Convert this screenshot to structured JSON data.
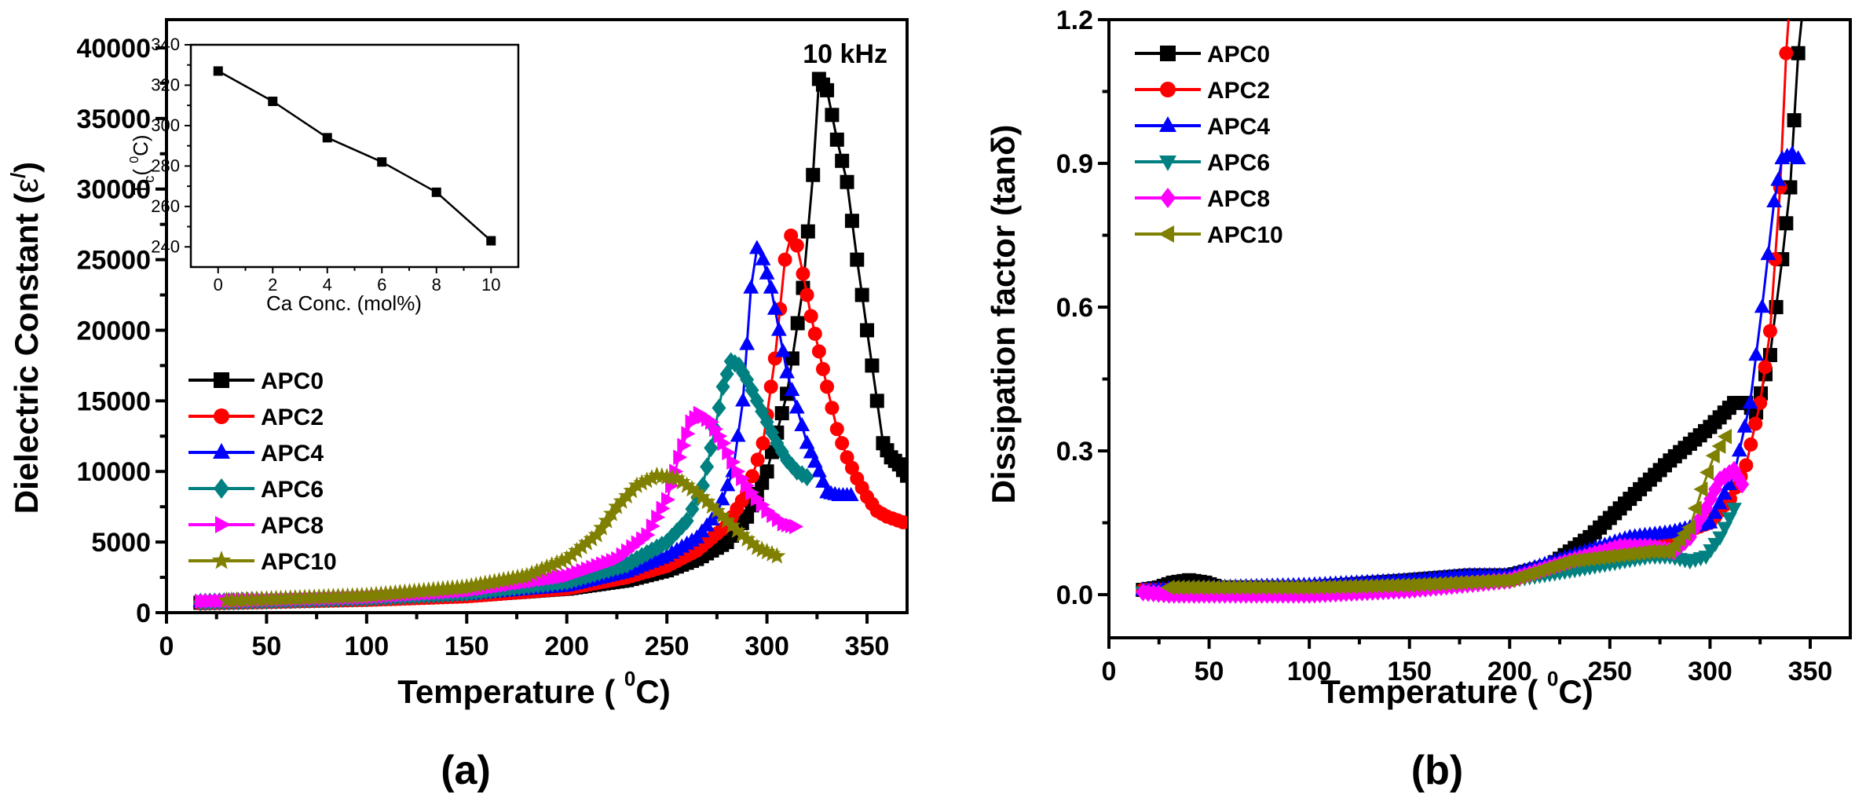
{
  "chart_data": [
    {
      "id": "panel-a",
      "type": "line",
      "caption": "(a)",
      "annotation": "10 kHz",
      "xlabel": "Temperature ( °C)",
      "xlabel_main": "Temperature ( ",
      "xlabel_sup": "0",
      "xlabel_end": "C)",
      "ylabel": "Dielectric Constant (ε′)",
      "ylabel_main": "Dielectric Constant (",
      "ylabel_sym": "ε",
      "ylabel_sup": "/",
      "ylabel_end": ")",
      "xlim": [
        0,
        370
      ],
      "ylim": [
        0,
        42000
      ],
      "xticks": [
        0,
        50,
        100,
        150,
        200,
        250,
        300,
        350
      ],
      "yticks": [
        0,
        5000,
        10000,
        15000,
        20000,
        25000,
        30000,
        35000,
        40000
      ],
      "legend": "center-left",
      "series": [
        {
          "name": "APC0",
          "color": "#000000",
          "marker": "square",
          "points": [
            [
              17,
              700
            ],
            [
              50,
              800
            ],
            [
              100,
              950
            ],
            [
              150,
              1200
            ],
            [
              200,
              1700
            ],
            [
              230,
              2300
            ],
            [
              250,
              3000
            ],
            [
              265,
              3800
            ],
            [
              280,
              5000
            ],
            [
              290,
              6800
            ],
            [
              300,
              10000
            ],
            [
              310,
              15500
            ],
            [
              318,
              23000
            ],
            [
              323,
              31000
            ],
            [
              326,
              37800
            ],
            [
              330,
              37000
            ],
            [
              335,
              33500
            ],
            [
              340,
              30500
            ],
            [
              345,
              25000
            ],
            [
              350,
              20000
            ],
            [
              355,
              15000
            ],
            [
              358,
              12000
            ],
            [
              362,
              11000
            ],
            [
              366,
              10500
            ],
            [
              370,
              9700
            ]
          ]
        },
        {
          "name": "APC2",
          "color": "#ff0000",
          "marker": "circle",
          "points": [
            [
              17,
              650
            ],
            [
              50,
              750
            ],
            [
              100,
              900
            ],
            [
              150,
              1150
            ],
            [
              200,
              1700
            ],
            [
              230,
              2500
            ],
            [
              250,
              3300
            ],
            [
              265,
              4400
            ],
            [
              280,
              6200
            ],
            [
              290,
              8500
            ],
            [
              298,
              12000
            ],
            [
              304,
              18000
            ],
            [
              309,
              25000
            ],
            [
              312,
              26700
            ],
            [
              315,
              26000
            ],
            [
              318,
              24000
            ],
            [
              322,
              21000
            ],
            [
              326,
              18500
            ],
            [
              330,
              16000
            ],
            [
              335,
              13000
            ],
            [
              340,
              11000
            ],
            [
              345,
              9500
            ],
            [
              350,
              8200
            ],
            [
              355,
              7200
            ],
            [
              360,
              6800
            ],
            [
              368,
              6400
            ]
          ]
        },
        {
          "name": "APC4",
          "color": "#0000ff",
          "marker": "triangle-up",
          "points": [
            [
              17,
              800
            ],
            [
              50,
              900
            ],
            [
              100,
              1050
            ],
            [
              150,
              1300
            ],
            [
              200,
              1900
            ],
            [
              230,
              2900
            ],
            [
              250,
              4000
            ],
            [
              265,
              5300
            ],
            [
              275,
              7000
            ],
            [
              283,
              10000
            ],
            [
              288,
              15000
            ],
            [
              292,
              23000
            ],
            [
              295,
              25800
            ],
            [
              298,
              25000
            ],
            [
              302,
              23000
            ],
            [
              306,
              20000
            ],
            [
              310,
              17000
            ],
            [
              315,
              14500
            ],
            [
              320,
              12000
            ],
            [
              326,
              10000
            ],
            [
              330,
              8500
            ],
            [
              336,
              8300
            ],
            [
              342,
              8300
            ]
          ]
        },
        {
          "name": "APC6",
          "color": "#008080",
          "marker": "diamond",
          "points": [
            [
              17,
              750
            ],
            [
              50,
              850
            ],
            [
              100,
              1050
            ],
            [
              150,
              1400
            ],
            [
              200,
              2200
            ],
            [
              230,
              3400
            ],
            [
              250,
              5000
            ],
            [
              260,
              6500
            ],
            [
              268,
              9000
            ],
            [
              274,
              13000
            ],
            [
              278,
              16000
            ],
            [
              282,
              17800
            ],
            [
              286,
              17500
            ],
            [
              290,
              16500
            ],
            [
              295,
              15000
            ],
            [
              300,
              13500
            ],
            [
              305,
              12000
            ],
            [
              310,
              10800
            ],
            [
              315,
              10000
            ],
            [
              320,
              9600
            ]
          ]
        },
        {
          "name": "APC8",
          "color": "#ff00ff",
          "marker": "triangle-right",
          "points": [
            [
              17,
              800
            ],
            [
              50,
              900
            ],
            [
              100,
              1100
            ],
            [
              150,
              1550
            ],
            [
              200,
              2600
            ],
            [
              225,
              3800
            ],
            [
              240,
              5500
            ],
            [
              250,
              8000
            ],
            [
              256,
              11000
            ],
            [
              262,
              13500
            ],
            [
              266,
              14100
            ],
            [
              272,
              13500
            ],
            [
              278,
              12000
            ],
            [
              285,
              10000
            ],
            [
              292,
              8500
            ],
            [
              300,
              7200
            ],
            [
              308,
              6300
            ],
            [
              314,
              6100
            ]
          ]
        },
        {
          "name": "APC10",
          "color": "#808000",
          "marker": "star",
          "points": [
            [
              30,
              850
            ],
            [
              50,
              950
            ],
            [
              100,
              1200
            ],
            [
              150,
              1800
            ],
            [
              180,
              2600
            ],
            [
              200,
              3800
            ],
            [
              215,
              5500
            ],
            [
              225,
              7500
            ],
            [
              235,
              9000
            ],
            [
              245,
              9700
            ],
            [
              255,
              9500
            ],
            [
              265,
              8500
            ],
            [
              275,
              7200
            ],
            [
              285,
              5800
            ],
            [
              295,
              4600
            ],
            [
              305,
              4000
            ]
          ]
        }
      ]
    },
    {
      "id": "panel-a-inset",
      "type": "line",
      "xlabel": "Ca Conc. (mol%)",
      "ylabel": "Tc (°C)",
      "ylabel_main": "T",
      "ylabel_sub": "c",
      "ylabel_open": "( ",
      "ylabel_sup": "0",
      "ylabel_end": "C)",
      "xlim": [
        -1,
        11
      ],
      "ylim": [
        230,
        340
      ],
      "xticks": [
        0,
        2,
        4,
        6,
        8,
        10
      ],
      "yticks": [
        240,
        260,
        280,
        300,
        320,
        340
      ],
      "series": [
        {
          "name": "Tc",
          "color": "#000000",
          "marker": "square",
          "x": [
            0,
            2,
            4,
            6,
            8,
            10
          ],
          "y": [
            327,
            312,
            294,
            282,
            267,
            243
          ]
        }
      ]
    },
    {
      "id": "panel-b",
      "type": "line",
      "caption": "(b)",
      "xlabel": "Temperature ( °C)",
      "xlabel_main": "Temperature ( ",
      "xlabel_sup": "0",
      "xlabel_end": "C)",
      "ylabel": "Dissipation factor (tanδ)",
      "xlim": [
        0,
        370
      ],
      "ylim": [
        -0.09,
        1.2
      ],
      "xticks": [
        0,
        50,
        100,
        150,
        200,
        250,
        300,
        350
      ],
      "yticks": [
        0.0,
        0.3,
        0.6,
        0.9,
        1.2
      ],
      "ytick_labels": [
        "0.0",
        "0.3",
        "0.6",
        "0.9",
        "1.2"
      ],
      "legend": "top-left",
      "series": [
        {
          "name": "APC0",
          "color": "#000000",
          "marker": "square",
          "points": [
            [
              17,
              0.01
            ],
            [
              25,
              0.015
            ],
            [
              32,
              0.025
            ],
            [
              40,
              0.03
            ],
            [
              48,
              0.025
            ],
            [
              55,
              0.015
            ],
            [
              100,
              0.015
            ],
            [
              150,
              0.03
            ],
            [
              180,
              0.04
            ],
            [
              200,
              0.04
            ],
            [
              220,
              0.06
            ],
            [
              240,
              0.12
            ],
            [
              260,
              0.2
            ],
            [
              280,
              0.28
            ],
            [
              300,
              0.35
            ],
            [
              312,
              0.4
            ],
            [
              318,
              0.4
            ],
            [
              323,
              0.38
            ],
            [
              330,
              0.5
            ],
            [
              336,
              0.7
            ],
            [
              340,
              0.85
            ],
            [
              344,
              1.13
            ],
            [
              347,
              1.25
            ]
          ]
        },
        {
          "name": "APC2",
          "color": "#ff0000",
          "marker": "circle",
          "points": [
            [
              17,
              0.01
            ],
            [
              50,
              0.01
            ],
            [
              100,
              0.01
            ],
            [
              150,
              0.02
            ],
            [
              200,
              0.03
            ],
            [
              230,
              0.07
            ],
            [
              260,
              0.1
            ],
            [
              280,
              0.12
            ],
            [
              300,
              0.15
            ],
            [
              310,
              0.2
            ],
            [
              318,
              0.27
            ],
            [
              325,
              0.4
            ],
            [
              330,
              0.55
            ],
            [
              335,
              0.85
            ],
            [
              338,
              1.13
            ],
            [
              340,
              1.25
            ]
          ]
        },
        {
          "name": "APC4",
          "color": "#0000ff",
          "marker": "triangle-up",
          "points": [
            [
              17,
              0.01
            ],
            [
              50,
              0.015
            ],
            [
              100,
              0.02
            ],
            [
              150,
              0.03
            ],
            [
              180,
              0.04
            ],
            [
              200,
              0.04
            ],
            [
              230,
              0.08
            ],
            [
              260,
              0.12
            ],
            [
              280,
              0.13
            ],
            [
              300,
              0.15
            ],
            [
              312,
              0.25
            ],
            [
              320,
              0.4
            ],
            [
              326,
              0.6
            ],
            [
              332,
              0.82
            ],
            [
              336,
              0.91
            ],
            [
              341,
              0.92
            ],
            [
              344,
              0.91
            ]
          ]
        },
        {
          "name": "APC6",
          "color": "#008080",
          "marker": "triangle-down",
          "points": [
            [
              17,
              0.005
            ],
            [
              50,
              0.005
            ],
            [
              100,
              0.005
            ],
            [
              150,
              0.015
            ],
            [
              200,
              0.03
            ],
            [
              230,
              0.05
            ],
            [
              250,
              0.065
            ],
            [
              270,
              0.08
            ],
            [
              280,
              0.08
            ],
            [
              290,
              0.07
            ],
            [
              298,
              0.08
            ],
            [
              305,
              0.12
            ],
            [
              312,
              0.18
            ]
          ]
        },
        {
          "name": "APC8",
          "color": "#ff00ff",
          "marker": "diamond",
          "points": [
            [
              17,
              0.005
            ],
            [
              30,
              0.0
            ],
            [
              50,
              0.0
            ],
            [
              100,
              0.0
            ],
            [
              150,
              0.01
            ],
            [
              200,
              0.03
            ],
            [
              230,
              0.07
            ],
            [
              255,
              0.1
            ],
            [
              270,
              0.1
            ],
            [
              282,
              0.09
            ],
            [
              290,
              0.12
            ],
            [
              298,
              0.18
            ],
            [
              305,
              0.24
            ],
            [
              312,
              0.26
            ],
            [
              316,
              0.23
            ]
          ]
        },
        {
          "name": "APC10",
          "color": "#808000",
          "marker": "triangle-left",
          "points": [
            [
              30,
              0.015
            ],
            [
              50,
              0.015
            ],
            [
              100,
              0.015
            ],
            [
              150,
              0.02
            ],
            [
              200,
              0.03
            ],
            [
              230,
              0.07
            ],
            [
              250,
              0.08
            ],
            [
              270,
              0.09
            ],
            [
              280,
              0.09
            ],
            [
              290,
              0.14
            ],
            [
              296,
              0.22
            ],
            [
              302,
              0.29
            ],
            [
              308,
              0.33
            ]
          ]
        }
      ]
    }
  ]
}
